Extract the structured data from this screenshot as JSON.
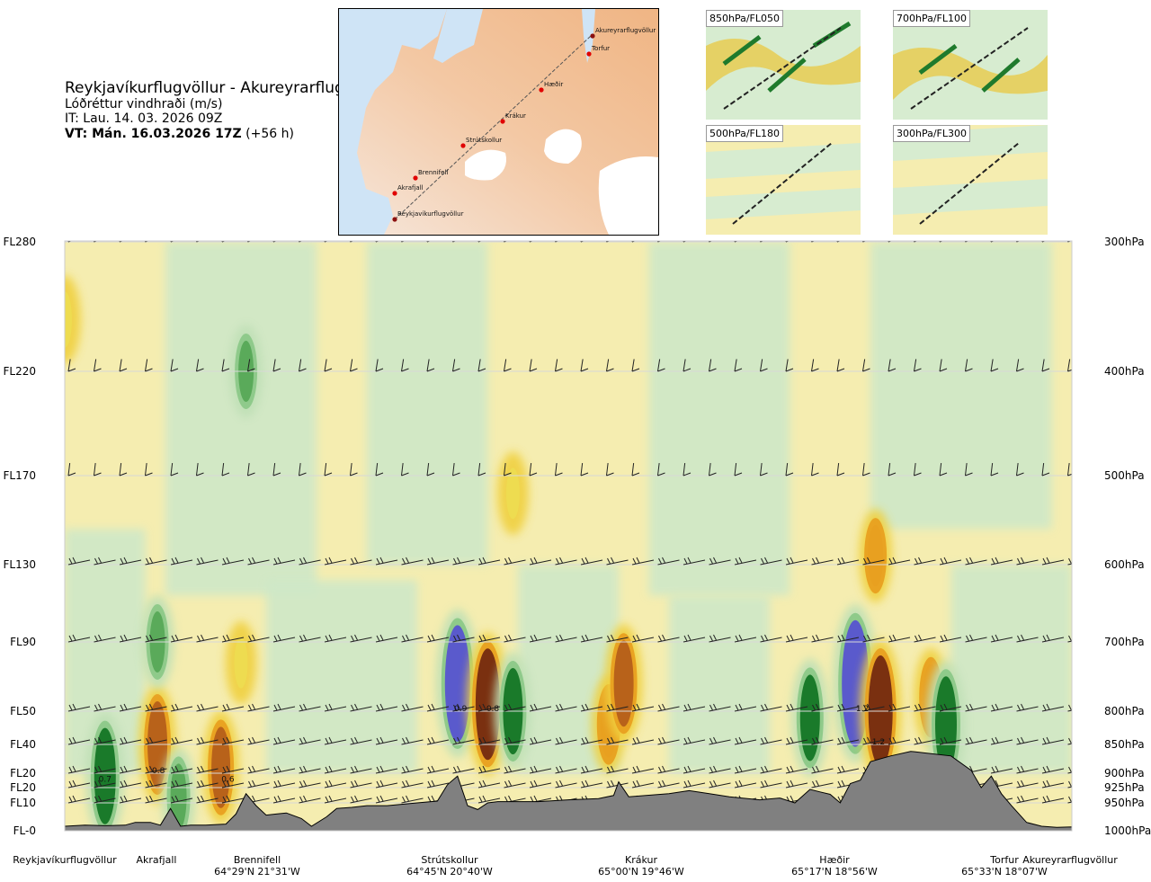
{
  "header": {
    "route": "Reykjavíkurflugvöllur - Akureyrarflugvöllur",
    "variable": "Lóðréttur vindhraði (m/s)",
    "issue_time": "IT: Lau. 14. 03. 2026 09Z",
    "valid_label": "VT: Mán. 16.03.2026 17Z",
    "lead": "(+56 h)"
  },
  "route_map": {
    "waypoints": [
      "Reykjavíkurflugvöllur",
      "Akrafjall",
      "Brennifell",
      "Strútskollur",
      "Krákur",
      "Hæðir",
      "Torfur",
      "Akureyrarflugvöllur"
    ]
  },
  "level_maps": [
    {
      "label": "850hPa/FL050"
    },
    {
      "label": "700hPa/FL100"
    },
    {
      "label": "500hPa/FL180"
    },
    {
      "label": "300hPa/FL300"
    }
  ],
  "chart_data": {
    "type": "heatmap",
    "title": "Reykjavíkurflugvöllur - Akureyrarflugvöllur",
    "variable": "Lóðréttur vindhraði (m/s)",
    "left_axis_labels": [
      {
        "label": "FL280",
        "hpa": 300
      },
      {
        "label": "FL220",
        "hpa": 400
      },
      {
        "label": "FL170",
        "hpa": 500
      },
      {
        "label": "FL130",
        "hpa": 600
      },
      {
        "label": "FL90",
        "hpa": 700
      },
      {
        "label": "FL50",
        "hpa": 800
      },
      {
        "label": "FL40",
        "hpa": 850
      },
      {
        "label": "FL20",
        "hpa": 900
      },
      {
        "label": "FL20",
        "hpa": 925
      },
      {
        "label": "FL10",
        "hpa": 950
      },
      {
        "label": "FL-0",
        "hpa": 1000
      }
    ],
    "right_axis_labels": [
      "300hPa",
      "400hPa",
      "500hPa",
      "600hPa",
      "700hPa",
      "800hPa",
      "850hPa",
      "900hPa",
      "925hPa",
      "950hPa",
      "1000hPa"
    ],
    "pressure_levels": [
      300,
      400,
      500,
      600,
      700,
      800,
      850,
      900,
      925,
      950,
      1000
    ],
    "xlim": [
      0,
      1
    ],
    "locations": [
      {
        "name": "Reykjavíkurflugvöllur",
        "coords": "",
        "pos": 0.0
      },
      {
        "name": "Akrafjall",
        "coords": "",
        "pos": 0.09
      },
      {
        "name": "Brennifell",
        "coords": "64°29'N 21°31'W",
        "pos": 0.185
      },
      {
        "name": "Strútskollur",
        "coords": "64°45'N 20°40'W",
        "pos": 0.38
      },
      {
        "name": "Krákur",
        "coords": "65°00'N 19°46'W",
        "pos": 0.56
      },
      {
        "name": "Hæðir",
        "coords": "65°17'N 18°56'W",
        "pos": 0.76
      },
      {
        "name": "Torfur",
        "coords": "65°33'N 18°07'W",
        "pos": 0.935
      },
      {
        "name": "Akureyrarflugvöllur",
        "coords": "",
        "pos": 1.0
      }
    ],
    "contour_labels": [
      {
        "text": "0.7",
        "x": 0.04,
        "hpa": 915
      },
      {
        "text": "0.8",
        "x": 0.093,
        "hpa": 900
      },
      {
        "text": "0.6",
        "x": 0.162,
        "hpa": 915
      },
      {
        "text": "0.9",
        "x": 0.393,
        "hpa": 800
      },
      {
        "text": "0.8",
        "x": 0.425,
        "hpa": 800
      },
      {
        "text": "1.2",
        "x": 0.792,
        "hpa": 800
      },
      {
        "text": "1.2",
        "x": 0.808,
        "hpa": 850
      }
    ],
    "vertical_motion_cells": [
      {
        "x": 0.04,
        "hpa": 905,
        "v": 1.2
      },
      {
        "x": 0.092,
        "hpa": 850,
        "v": -1.0
      },
      {
        "x": 0.092,
        "hpa": 700,
        "v": 0.5
      },
      {
        "x": 0.113,
        "hpa": 940,
        "v": 0.6
      },
      {
        "x": 0.155,
        "hpa": 890,
        "v": -0.9
      },
      {
        "x": 0.175,
        "hpa": 730,
        "v": -0.3
      },
      {
        "x": 0.39,
        "hpa": 760,
        "v": 1.6
      },
      {
        "x": 0.42,
        "hpa": 790,
        "v": -1.5
      },
      {
        "x": 0.445,
        "hpa": 800,
        "v": 1.0
      },
      {
        "x": 0.54,
        "hpa": 820,
        "v": -0.6
      },
      {
        "x": 0.555,
        "hpa": 760,
        "v": -1.0
      },
      {
        "x": 0.74,
        "hpa": 810,
        "v": 1.0
      },
      {
        "x": 0.785,
        "hpa": 760,
        "v": 1.8
      },
      {
        "x": 0.81,
        "hpa": 800,
        "v": -1.5
      },
      {
        "x": 0.86,
        "hpa": 780,
        "v": -0.6
      },
      {
        "x": 0.875,
        "hpa": 820,
        "v": 1.2
      },
      {
        "x": 0.805,
        "hpa": 590,
        "v": -0.5
      },
      {
        "x": 0.445,
        "hpa": 520,
        "v": -0.3
      },
      {
        "x": 0.0,
        "hpa": 360,
        "v": -0.4
      },
      {
        "x": 0.18,
        "hpa": 400,
        "v": 0.5
      }
    ],
    "terrain_hpa": [
      [
        0.0,
        992
      ],
      [
        0.02,
        990
      ],
      [
        0.04,
        991
      ],
      [
        0.06,
        990
      ],
      [
        0.07,
        985
      ],
      [
        0.085,
        985
      ],
      [
        0.095,
        990
      ],
      [
        0.105,
        960
      ],
      [
        0.115,
        992
      ],
      [
        0.125,
        990
      ],
      [
        0.14,
        990
      ],
      [
        0.16,
        988
      ],
      [
        0.17,
        970
      ],
      [
        0.18,
        935
      ],
      [
        0.19,
        955
      ],
      [
        0.2,
        972
      ],
      [
        0.21,
        970
      ],
      [
        0.22,
        968
      ],
      [
        0.235,
        978
      ],
      [
        0.245,
        992
      ],
      [
        0.26,
        975
      ],
      [
        0.27,
        960
      ],
      [
        0.285,
        958
      ],
      [
        0.3,
        955
      ],
      [
        0.32,
        955
      ],
      [
        0.35,
        950
      ],
      [
        0.37,
        947
      ],
      [
        0.38,
        920
      ],
      [
        0.39,
        905
      ],
      [
        0.4,
        955
      ],
      [
        0.41,
        962
      ],
      [
        0.42,
        950
      ],
      [
        0.43,
        948
      ],
      [
        0.47,
        948
      ],
      [
        0.5,
        945
      ],
      [
        0.53,
        943
      ],
      [
        0.545,
        938
      ],
      [
        0.55,
        915
      ],
      [
        0.56,
        940
      ],
      [
        0.6,
        935
      ],
      [
        0.62,
        930
      ],
      [
        0.64,
        935
      ],
      [
        0.66,
        940
      ],
      [
        0.69,
        945
      ],
      [
        0.71,
        942
      ],
      [
        0.725,
        950
      ],
      [
        0.74,
        928
      ],
      [
        0.75,
        932
      ],
      [
        0.76,
        936
      ],
      [
        0.77,
        950
      ],
      [
        0.78,
        918
      ],
      [
        0.79,
        912
      ],
      [
        0.8,
        880
      ],
      [
        0.82,
        870
      ],
      [
        0.84,
        862
      ],
      [
        0.86,
        866
      ],
      [
        0.88,
        870
      ],
      [
        0.9,
        895
      ],
      [
        0.91,
        925
      ],
      [
        0.92,
        905
      ],
      [
        0.93,
        935
      ],
      [
        0.94,
        955
      ],
      [
        0.955,
        985
      ],
      [
        0.97,
        992
      ],
      [
        0.985,
        994
      ],
      [
        1.0,
        993
      ]
    ],
    "wind_barb_levels": [
      300,
      400,
      500,
      600,
      700,
      800,
      850,
      900,
      925,
      950
    ]
  }
}
